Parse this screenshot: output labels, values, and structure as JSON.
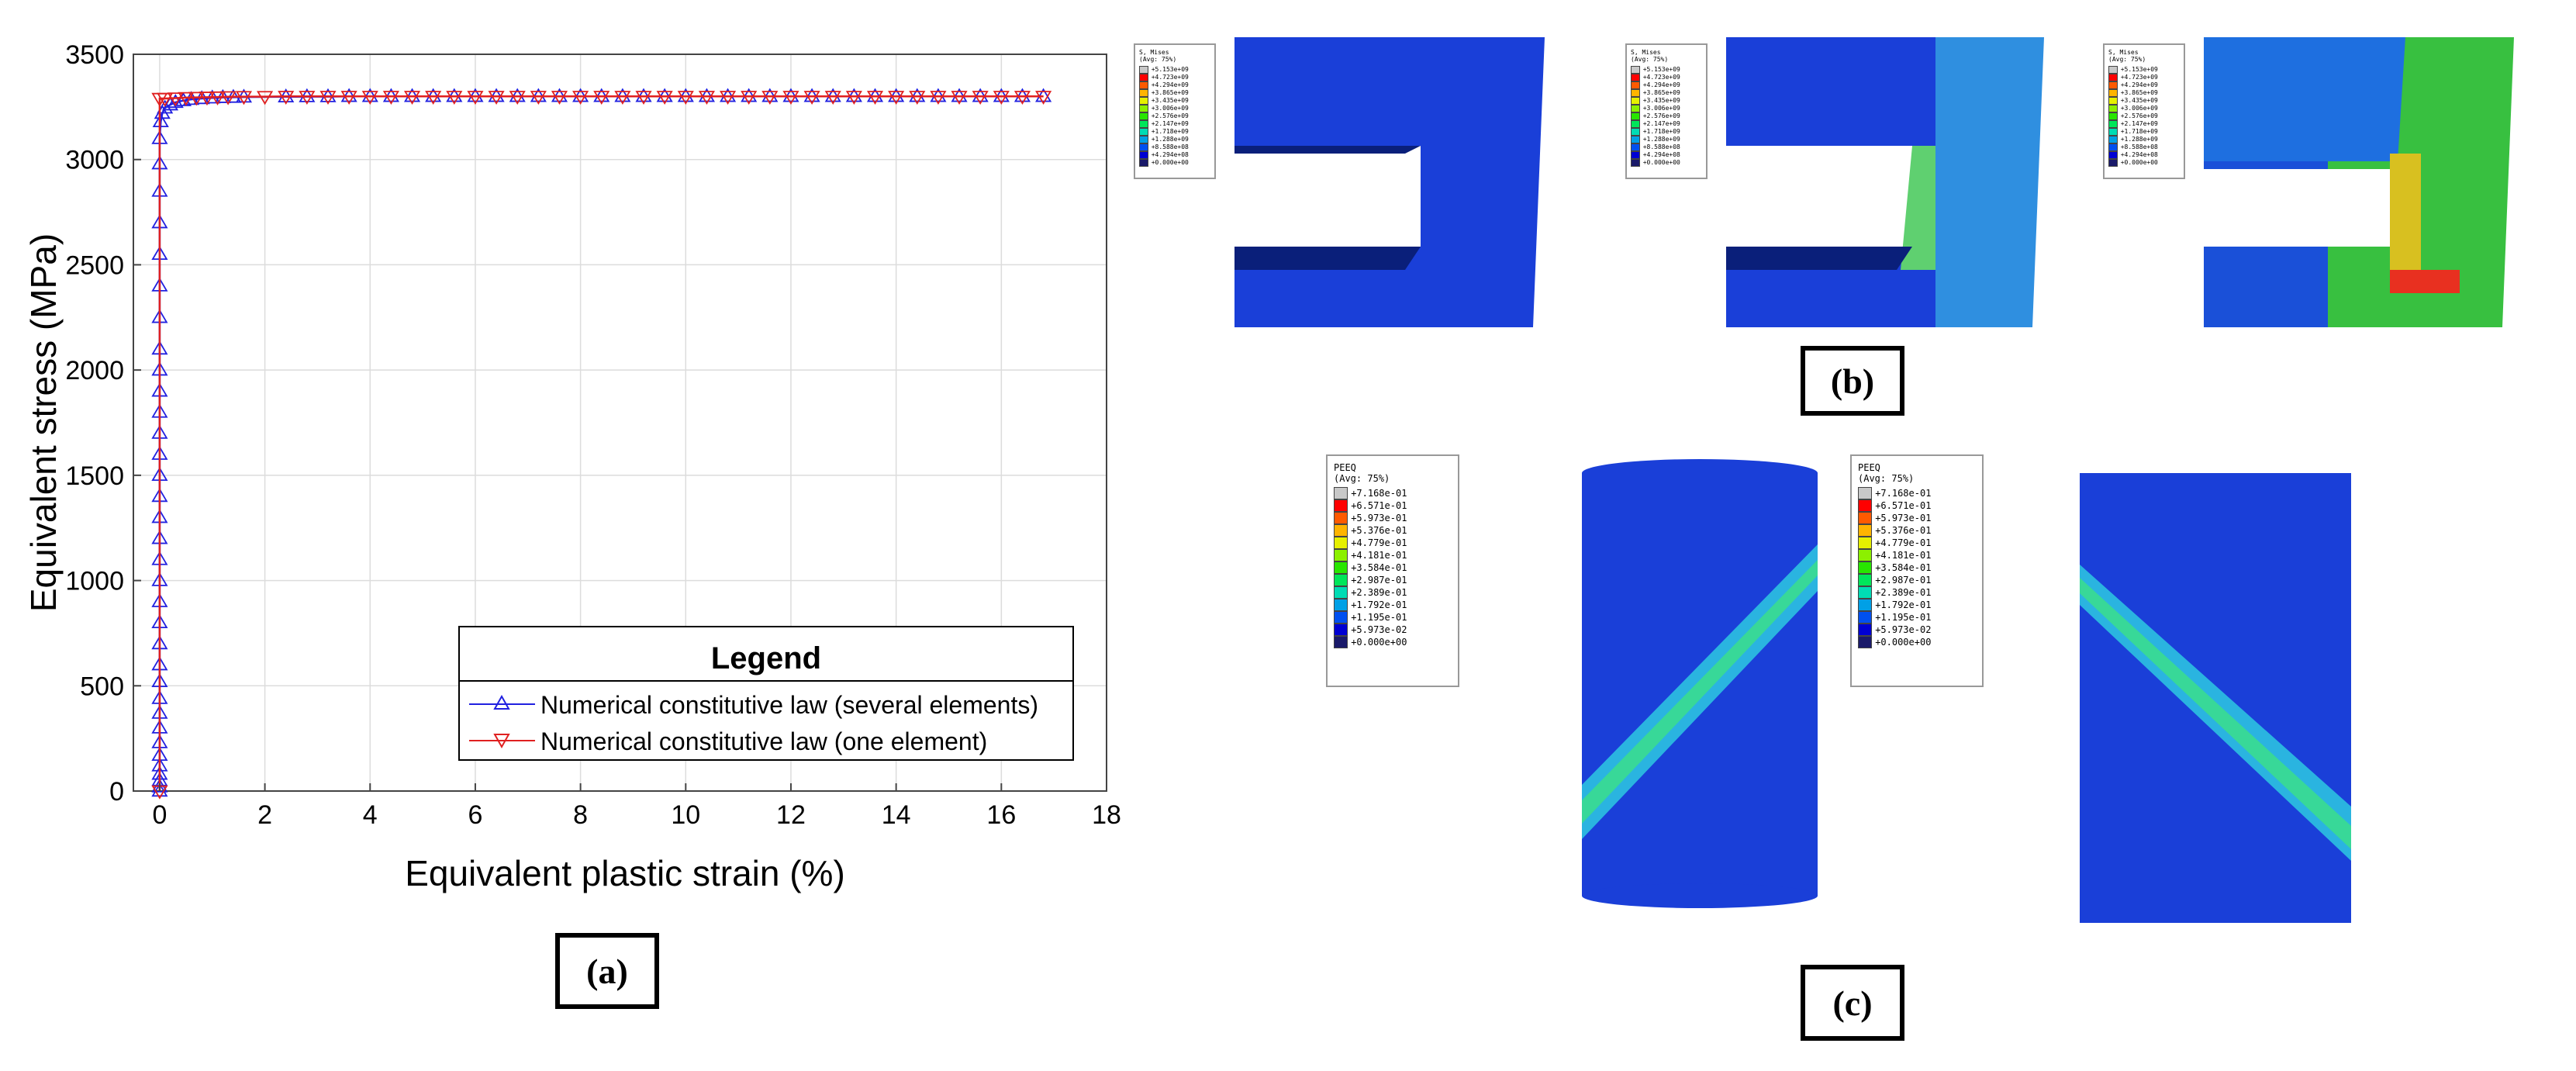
{
  "chart_data": {
    "type": "line",
    "xlabel": "Equivalent plastic strain (%)",
    "ylabel": "Equivalent stress (MPa)",
    "xlim": [
      -0.5,
      18
    ],
    "ylim": [
      0,
      3500
    ],
    "xticks": [
      0,
      2,
      4,
      6,
      8,
      10,
      12,
      14,
      16,
      18
    ],
    "yticks": [
      0,
      500,
      1000,
      1500,
      2000,
      2500,
      3000,
      3500
    ],
    "xtick_labels": [
      "0",
      "2",
      "4",
      "6",
      "8",
      "10",
      "12",
      "14",
      "16",
      "18"
    ],
    "ytick_labels": [
      "0",
      "500",
      "1000",
      "1500",
      "2000",
      "2500",
      "3000",
      "3500"
    ],
    "grid": true,
    "legend_title": "Legend",
    "legend_position": "bottom-right",
    "series": [
      {
        "name": "Numerical constitutive law (several elements)",
        "color": "#2020e0",
        "marker": "triangle-up",
        "x": [
          0,
          0,
          0,
          0,
          0,
          0,
          0,
          0,
          0,
          0,
          0,
          0,
          0,
          0,
          0,
          0,
          0,
          0,
          0,
          0,
          0,
          0,
          0,
          0,
          0,
          0,
          0,
          0,
          0,
          0,
          0,
          0,
          0,
          0,
          0.02,
          0.05,
          0.1,
          0.2,
          0.3,
          0.45,
          0.6,
          0.8,
          1.0,
          1.2,
          1.4,
          1.6,
          2.4,
          2.8,
          3.2,
          3.6,
          4.0,
          4.4,
          4.8,
          5.2,
          5.6,
          6.0,
          6.4,
          6.8,
          7.2,
          7.6,
          8.0,
          8.4,
          8.8,
          9.2,
          9.6,
          10.0,
          10.4,
          10.8,
          11.2,
          11.6,
          12.0,
          12.4,
          12.8,
          13.2,
          13.6,
          14.0,
          14.4,
          14.8,
          15.2,
          15.6,
          16.0,
          16.4,
          16.8
        ],
        "y": [
          0,
          20,
          50,
          80,
          120,
          170,
          230,
          300,
          370,
          440,
          520,
          600,
          700,
          800,
          900,
          1000,
          1100,
          1200,
          1300,
          1400,
          1500,
          1600,
          1700,
          1800,
          1900,
          2000,
          2100,
          2250,
          2400,
          2550,
          2700,
          2850,
          2980,
          3100,
          3180,
          3220,
          3245,
          3260,
          3272,
          3280,
          3286,
          3290,
          3293,
          3295,
          3296,
          3297,
          3298,
          3299,
          3299,
          3300,
          3300,
          3300,
          3300,
          3300,
          3300,
          3300,
          3300,
          3300,
          3300,
          3300,
          3300,
          3300,
          3300,
          3300,
          3300,
          3300,
          3300,
          3300,
          3300,
          3300,
          3300,
          3300,
          3300,
          3300,
          3300,
          3300,
          3300,
          3300,
          3300,
          3300,
          3300,
          3300,
          3300
        ]
      },
      {
        "name": "Numerical constitutive law (one element)",
        "color": "#e02020",
        "marker": "triangle-down",
        "x": [
          0,
          0,
          0.1,
          0.3,
          0.5,
          0.7,
          0.9,
          1.1,
          1.3,
          1.6,
          2.0,
          2.4,
          2.8,
          3.2,
          3.6,
          4.0,
          4.4,
          4.8,
          5.2,
          5.6,
          6.0,
          6.4,
          6.8,
          7.2,
          7.6,
          8.0,
          8.4,
          8.8,
          9.2,
          9.6,
          10.0,
          10.4,
          10.8,
          11.2,
          11.6,
          12.0,
          12.4,
          12.8,
          13.2,
          13.6,
          14.0,
          14.4,
          14.8,
          15.2,
          15.6,
          16.0,
          16.4,
          16.8
        ],
        "y": [
          0,
          3290,
          3290,
          3292,
          3294,
          3295,
          3296,
          3297,
          3298,
          3299,
          3299,
          3300,
          3300,
          3300,
          3300,
          3300,
          3300,
          3300,
          3300,
          3300,
          3300,
          3300,
          3300,
          3300,
          3300,
          3300,
          3300,
          3300,
          3300,
          3300,
          3300,
          3300,
          3300,
          3300,
          3300,
          3300,
          3300,
          3300,
          3300,
          3300,
          3300,
          3300,
          3300,
          3300,
          3300,
          3300,
          3300,
          3300
        ]
      }
    ]
  },
  "panels": {
    "a": "(a)",
    "b": "(b)",
    "c": "(c)"
  },
  "stress_legend": {
    "title": "S, Mises\n(Avg: 75%)",
    "values": [
      "+5.153e+09",
      "+4.723e+09",
      "+4.294e+09",
      "+3.865e+09",
      "+3.435e+09",
      "+3.006e+09",
      "+2.576e+09",
      "+2.147e+09",
      "+1.718e+09",
      "+1.288e+09",
      "+8.588e+08",
      "+4.294e+08",
      "+0.000e+00"
    ]
  },
  "peeq_legend": {
    "title": "PEEQ\n(Avg: 75%)",
    "values": [
      "+7.168e-01",
      "+6.571e-01",
      "+5.973e-01",
      "+5.376e-01",
      "+4.779e-01",
      "+4.181e-01",
      "+3.584e-01",
      "+2.987e-01",
      "+2.389e-01",
      "+1.792e-01",
      "+1.195e-01",
      "+5.973e-02",
      "+0.000e+00"
    ]
  },
  "contour_colors": [
    "#c8c8c8",
    "#ff0000",
    "#ff5a00",
    "#ffb400",
    "#e6f000",
    "#8cf000",
    "#28e600",
    "#00e65a",
    "#00dcb4",
    "#00a0e6",
    "#0050f0",
    "#0000d2",
    "#1a1a6a"
  ]
}
